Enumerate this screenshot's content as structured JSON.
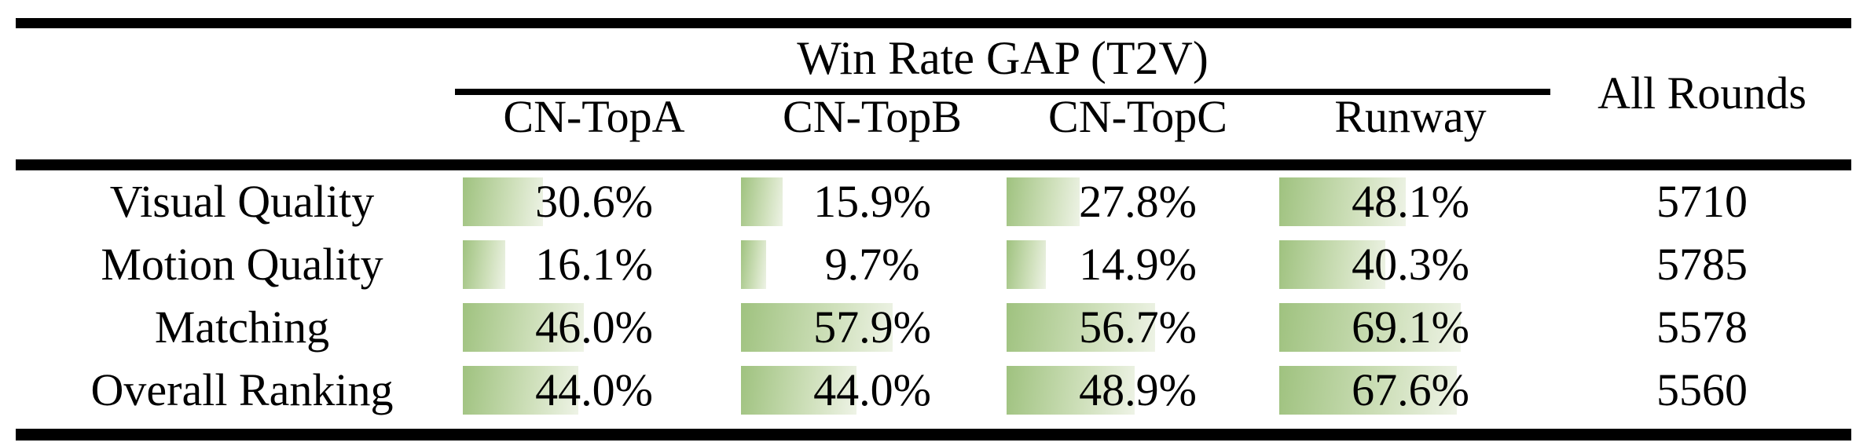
{
  "table": {
    "title": "Win Rate GAP (T2V)",
    "all_rounds_header": "All Rounds",
    "columns": [
      {
        "label": "CN-TopA"
      },
      {
        "label": "CN-TopB"
      },
      {
        "label": "CN-TopC"
      },
      {
        "label": "Runway"
      }
    ],
    "rows": [
      {
        "label": "Visual Quality",
        "cells": [
          {
            "label": "30.6%",
            "pct": 30.6
          },
          {
            "label": "15.9%",
            "pct": 15.9
          },
          {
            "label": "27.8%",
            "pct": 27.8
          },
          {
            "label": "48.1%",
            "pct": 48.1
          }
        ],
        "all_rounds": "5710"
      },
      {
        "label": "Motion Quality",
        "cells": [
          {
            "label": "16.1%",
            "pct": 16.1
          },
          {
            "label": "9.7%",
            "pct": 9.7
          },
          {
            "label": "14.9%",
            "pct": 14.9
          },
          {
            "label": "40.3%",
            "pct": 40.3
          }
        ],
        "all_rounds": "5785"
      },
      {
        "label": "Matching",
        "cells": [
          {
            "label": "46.0%",
            "pct": 46.0
          },
          {
            "label": "57.9%",
            "pct": 57.9
          },
          {
            "label": "56.7%",
            "pct": 56.7
          },
          {
            "label": "69.1%",
            "pct": 69.1
          }
        ],
        "all_rounds": "5578"
      },
      {
        "label": "Overall Ranking",
        "cells": [
          {
            "label": "44.0%",
            "pct": 44.0
          },
          {
            "label": "44.0%",
            "pct": 44.0
          },
          {
            "label": "48.9%",
            "pct": 48.9
          },
          {
            "label": "67.6%",
            "pct": 67.6
          }
        ],
        "all_rounds": "5560"
      }
    ]
  },
  "colors": {
    "bar_gradient_start": "#9fc27f",
    "bar_gradient_mid": "#cfe0bb",
    "bar_gradient_end": "#eef3e6",
    "rule_color": "#000000",
    "text_color": "#000000"
  },
  "chart_data": {
    "type": "table",
    "title": "Win Rate GAP (T2V)",
    "categories": [
      "Visual Quality",
      "Motion Quality",
      "Matching",
      "Overall Ranking"
    ],
    "series": [
      {
        "name": "CN-TopA",
        "values": [
          30.6,
          16.1,
          46.0,
          44.0
        ]
      },
      {
        "name": "CN-TopB",
        "values": [
          15.9,
          9.7,
          57.9,
          44.0
        ]
      },
      {
        "name": "CN-TopC",
        "values": [
          27.8,
          14.9,
          56.7,
          48.9
        ]
      },
      {
        "name": "Runway",
        "values": [
          48.1,
          40.3,
          69.1,
          67.6
        ]
      },
      {
        "name": "All Rounds",
        "values": [
          5710,
          5785,
          5578,
          5560
        ]
      }
    ],
    "value_unit": "%",
    "bar_scale": [
      0,
      100
    ]
  }
}
